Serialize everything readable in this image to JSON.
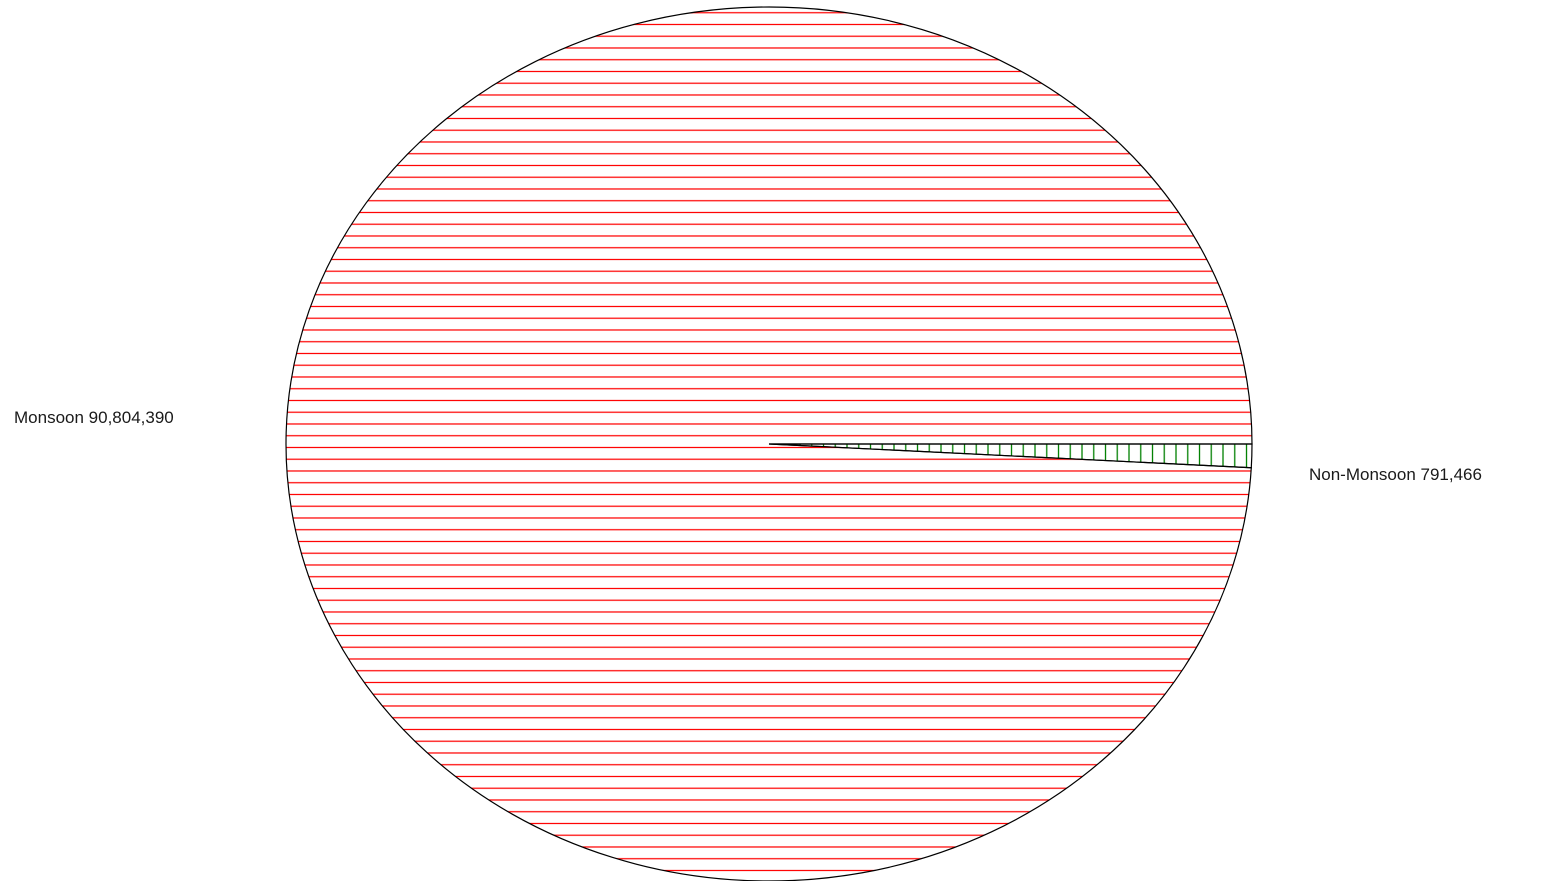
{
  "chart_data": {
    "type": "pie",
    "title": "",
    "slices": [
      {
        "label": "Monsoon 90,804,390",
        "name": "Monsoon",
        "value": 90804390,
        "color": "#ff0000",
        "pattern": "horizontal-lines"
      },
      {
        "label": "Non-Monsoon 791,466",
        "name": "Non-Monsoon",
        "value": 791466,
        "color": "#008000",
        "pattern": "vertical-lines"
      }
    ],
    "legend": "none",
    "start_angle_degrees": 0,
    "direction": "clockwise"
  }
}
